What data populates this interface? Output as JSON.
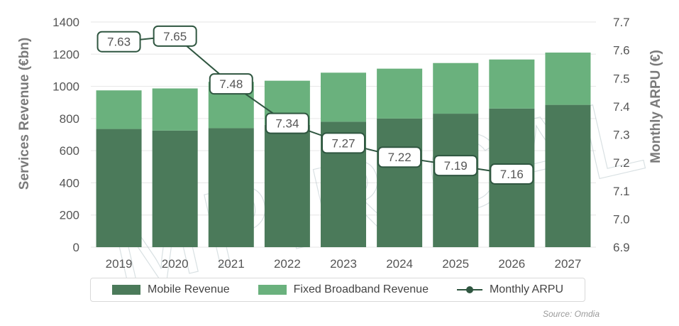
{
  "colors": {
    "mobile": "#4b7a5a",
    "broadband": "#6ab17d",
    "line": "#2f5640",
    "grid": "#e6e6e6",
    "label_border": "#2f5640"
  },
  "watermark": "MPIRICAL",
  "source": "Source: Omdia",
  "chart_data": {
    "type": "bar",
    "stacked": true,
    "categories": [
      "2019",
      "2020",
      "2021",
      "2022",
      "2023",
      "2024",
      "2025",
      "2026",
      "2027"
    ],
    "series": [
      {
        "name": "Mobile Revenue",
        "axis": "left",
        "values": [
          735,
          725,
          740,
          760,
          780,
          800,
          830,
          862,
          885
        ]
      },
      {
        "name": "Fixed Broadband Revenue",
        "axis": "left",
        "values": [
          240,
          262,
          288,
          275,
          305,
          310,
          315,
          305,
          325
        ]
      },
      {
        "name": "Monthly ARPU",
        "axis": "right",
        "type": "line",
        "values": [
          7.63,
          7.65,
          7.48,
          7.34,
          7.27,
          7.22,
          7.19,
          7.16
        ],
        "x": [
          "2019",
          "2020",
          "2021",
          "2022",
          "2023",
          "2024",
          "2025",
          "2026"
        ],
        "labels": [
          "7.63",
          "7.65",
          "7.48",
          "7.34",
          "7.27",
          "7.22",
          "7.19",
          "7.16"
        ]
      }
    ],
    "ylabel": "Services Revenue (€bn)",
    "y2label": "Monthly ARPU (€)",
    "ylim": [
      0,
      1400
    ],
    "y2lim": [
      6.9,
      7.7
    ],
    "yticks": [
      "0",
      "200",
      "400",
      "600",
      "800",
      "1000",
      "1200",
      "1400"
    ],
    "y2ticks": [
      "6.9",
      "7.0",
      "7.1",
      "7.2",
      "7.3",
      "7.4",
      "7.5",
      "7.6",
      "7.7"
    ],
    "grid": true,
    "legend_position": "bottom"
  },
  "legend": {
    "mobile": "Mobile Revenue",
    "broadband": "Fixed Broadband Revenue",
    "arpu": "Monthly ARPU"
  }
}
